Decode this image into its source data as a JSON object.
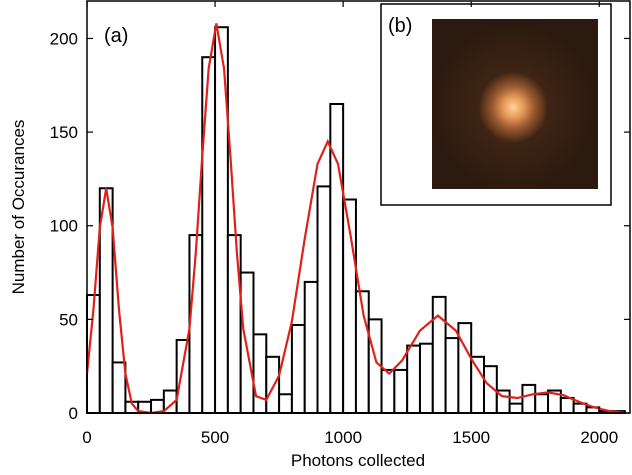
{
  "chart_data": {
    "type": "histogram",
    "xlabel": "Photons collected",
    "ylabel": "Number of Occurances",
    "annotations": [
      "(a)",
      "(b)"
    ],
    "bins": [
      0,
      50,
      100,
      150,
      200,
      250,
      300,
      350,
      400,
      450,
      500,
      550,
      600,
      650,
      700,
      750,
      800,
      850,
      900,
      950,
      1000,
      1050,
      1100,
      1150,
      1200,
      1250,
      1300,
      1350,
      1400,
      1450,
      1500,
      1550,
      1600,
      1650,
      1700,
      1750,
      1800,
      1850,
      1900,
      1950,
      2000,
      2050,
      2100
    ],
    "values": [
      63,
      120,
      27,
      6,
      6,
      7,
      12,
      39,
      95,
      190,
      206,
      95,
      75,
      42,
      30,
      10,
      47,
      70,
      121,
      165,
      114,
      65,
      50,
      23,
      23,
      36,
      37,
      62,
      40,
      48,
      30,
      25,
      12,
      5,
      15,
      10,
      12,
      8,
      5,
      3,
      1,
      1
    ],
    "color": "#ffffff",
    "edgecolor": "#000000",
    "fit": {
      "color": "#e0201b",
      "x": [
        0,
        25,
        50,
        75,
        100,
        125,
        150,
        175,
        200,
        250,
        300,
        350,
        400,
        425,
        450,
        475,
        505,
        535,
        560,
        585,
        610,
        660,
        700,
        750,
        800,
        850,
        900,
        940,
        980,
        1030,
        1080,
        1130,
        1180,
        1230,
        1300,
        1370,
        1440,
        1500,
        1560,
        1620,
        1680,
        1740,
        1800,
        1860,
        1920,
        1980,
        2040,
        2100
      ],
      "y": [
        21,
        55,
        99,
        120,
        99,
        55,
        21,
        5,
        1,
        0,
        1,
        7,
        45,
        86,
        137,
        184,
        208,
        184,
        137,
        86,
        45,
        9,
        7,
        20,
        49,
        93,
        133,
        145,
        133,
        94,
        52,
        27,
        21,
        28,
        44,
        52,
        44,
        29,
        16,
        9,
        8,
        10,
        11,
        9.5,
        6,
        3,
        1,
        0
      ]
    },
    "xlim": [
      0,
      2120
    ],
    "ylim": [
      0,
      220
    ],
    "xticks": [
      0,
      500,
      1000,
      1500,
      2000
    ],
    "yticks": [
      0,
      50,
      100,
      150,
      200
    ]
  }
}
